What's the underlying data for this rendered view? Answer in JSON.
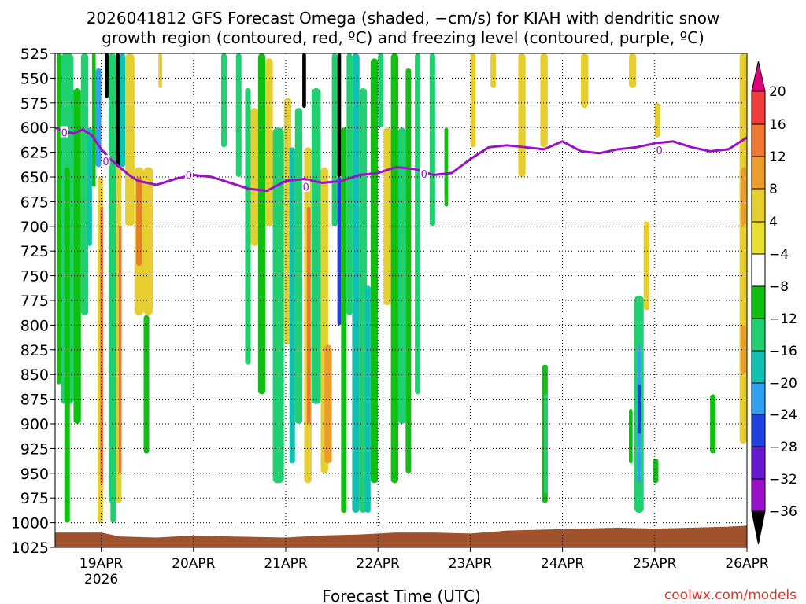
{
  "chart_data": {
    "type": "heatmap",
    "title": {
      "line1": "2026041812 GFS Forecast Omega (shaded, −cm/s) for KIAH with dendritic snow",
      "line2": "growth region (contoured, red, ºC) and freezing level (contoured, purple, ºC)"
    },
    "xlabel": "Forecast Time (UTC)",
    "ylabel": "",
    "credit": "coolwx.com/models",
    "x_tick_labels": [
      "19APR",
      "20APR",
      "21APR",
      "22APR",
      "23APR",
      "24APR",
      "25APR",
      "26APR"
    ],
    "x_first_year_label": "2026",
    "x_range_days": [
      18.5,
      26.0
    ],
    "y_range_hpa": [
      1025,
      525
    ],
    "y_ticks": [
      525,
      550,
      575,
      600,
      625,
      650,
      675,
      700,
      725,
      750,
      775,
      800,
      825,
      850,
      875,
      900,
      925,
      950,
      975,
      1000,
      1025
    ],
    "grid": true,
    "colorbar": {
      "levels": [
        20,
        16,
        12,
        8,
        4,
        -4,
        -8,
        -12,
        -16,
        -20,
        -24,
        -28,
        -32,
        -36
      ],
      "colors": [
        "#e0007a",
        "#f03c3c",
        "#f07830",
        "#ec9c2c",
        "#e6ce30",
        "#e8e030",
        "#ffffff",
        "#10c010",
        "#20d070",
        "#10c0b0",
        "#30a0f0",
        "#2040e0",
        "#6818d0",
        "#9810c8",
        "#a8a8a8",
        "#000000"
      ]
    },
    "freezing_level": {
      "label": "0",
      "color": "#9b10c8",
      "x": [
        18.5,
        18.6,
        18.7,
        18.8,
        18.9,
        19.0,
        19.1,
        19.2,
        19.3,
        19.4,
        19.6,
        19.8,
        20.0,
        20.2,
        20.4,
        20.6,
        20.8,
        21.0,
        21.2,
        21.4,
        21.6,
        21.8,
        22.0,
        22.2,
        22.4,
        22.6,
        22.8,
        23.0,
        23.2,
        23.4,
        23.6,
        23.8,
        24.0,
        24.2,
        24.4,
        24.6,
        24.8,
        25.0,
        25.2,
        25.4,
        25.6,
        25.8,
        26.0
      ],
      "p": [
        600,
        604,
        606,
        602,
        608,
        622,
        632,
        640,
        648,
        654,
        658,
        652,
        648,
        650,
        656,
        662,
        664,
        654,
        652,
        656,
        654,
        648,
        646,
        640,
        642,
        648,
        646,
        632,
        620,
        618,
        620,
        622,
        614,
        624,
        626,
        622,
        620,
        616,
        614,
        620,
        624,
        622,
        610
      ]
    },
    "dendritic_label": "0",
    "dendritic_label_positions": [
      {
        "x": 18.6,
        "p": 605
      },
      {
        "x": 19.05,
        "p": 634
      },
      {
        "x": 19.95,
        "p": 648
      },
      {
        "x": 21.22,
        "p": 660
      },
      {
        "x": 22.5,
        "p": 647
      },
      {
        "x": 25.05,
        "p": 623
      }
    ],
    "columns": [
      {
        "x0": 18.52,
        "x1": 18.56,
        "p0": 525,
        "p1": 860,
        "v": -7
      },
      {
        "x0": 18.56,
        "x1": 18.7,
        "p0": 525,
        "p1": 880,
        "v": -9
      },
      {
        "x0": 18.6,
        "x1": 18.66,
        "p0": 640,
        "p1": 1000,
        "v": -7
      },
      {
        "x0": 18.7,
        "x1": 18.78,
        "p0": 560,
        "p1": 900,
        "v": -7
      },
      {
        "x0": 18.78,
        "x1": 18.86,
        "p0": 525,
        "p1": 790,
        "v": -9
      },
      {
        "x0": 18.85,
        "x1": 18.9,
        "p0": 600,
        "p1": 720,
        "v": -14
      },
      {
        "x0": 18.9,
        "x1": 18.94,
        "p0": 525,
        "p1": 660,
        "v": -6
      },
      {
        "x0": 18.94,
        "x1": 19.0,
        "p0": 540,
        "p1": 640,
        "v": -18
      },
      {
        "x0": 18.96,
        "x1": 19.02,
        "p0": 650,
        "p1": 1000,
        "v": 6
      },
      {
        "x0": 18.99,
        "x1": 19.02,
        "p0": 680,
        "p1": 960,
        "v": 13
      },
      {
        "x0": 19.04,
        "x1": 19.08,
        "p0": 525,
        "p1": 570,
        "v": -40
      },
      {
        "x0": 19.08,
        "x1": 19.16,
        "p0": 525,
        "p1": 980,
        "v": -9
      },
      {
        "x0": 19.16,
        "x1": 19.2,
        "p0": 525,
        "p1": 640,
        "v": -40
      },
      {
        "x0": 19.16,
        "x1": 19.22,
        "p0": 640,
        "p1": 980,
        "v": 5
      },
      {
        "x0": 19.19,
        "x1": 19.22,
        "p0": 700,
        "p1": 950,
        "v": 14
      },
      {
        "x0": 19.2,
        "x1": 19.26,
        "p0": 525,
        "p1": 640,
        "v": -12
      },
      {
        "x0": 19.26,
        "x1": 19.36,
        "p0": 525,
        "p1": 700,
        "v": 5
      },
      {
        "x0": 19.36,
        "x1": 19.46,
        "p0": 640,
        "p1": 790,
        "v": 6
      },
      {
        "x0": 19.38,
        "x1": 19.44,
        "p0": 650,
        "p1": 740,
        "v": 14
      },
      {
        "x0": 19.46,
        "x1": 19.56,
        "p0": 640,
        "p1": 790,
        "v": 5
      },
      {
        "x0": 19.46,
        "x1": 19.52,
        "p0": 790,
        "p1": 930,
        "v": -7
      },
      {
        "x0": 19.1,
        "x1": 19.16,
        "p0": 700,
        "p1": 1000,
        "v": -9
      },
      {
        "x0": 19.62,
        "x1": 19.66,
        "p0": 525,
        "p1": 560,
        "v": 6
      },
      {
        "x0": 20.3,
        "x1": 20.36,
        "p0": 525,
        "p1": 620,
        "v": -8
      },
      {
        "x0": 20.46,
        "x1": 20.52,
        "p0": 525,
        "p1": 650,
        "v": -8
      },
      {
        "x0": 20.56,
        "x1": 20.62,
        "p0": 560,
        "p1": 840,
        "v": -9
      },
      {
        "x0": 20.62,
        "x1": 20.7,
        "p0": 580,
        "p1": 720,
        "v": 6
      },
      {
        "x0": 20.7,
        "x1": 20.78,
        "p0": 525,
        "p1": 870,
        "v": -7
      },
      {
        "x0": 20.78,
        "x1": 20.86,
        "p0": 530,
        "p1": 700,
        "v": 6
      },
      {
        "x0": 20.86,
        "x1": 20.98,
        "p0": 600,
        "p1": 960,
        "v": -9
      },
      {
        "x0": 20.98,
        "x1": 21.06,
        "p0": 570,
        "p1": 820,
        "v": 5
      },
      {
        "x0": 21.04,
        "x1": 21.1,
        "p0": 620,
        "p1": 940,
        "v": -12
      },
      {
        "x0": 21.1,
        "x1": 21.18,
        "p0": 580,
        "p1": 900,
        "v": -8
      },
      {
        "x0": 21.18,
        "x1": 21.22,
        "p0": 525,
        "p1": 580,
        "v": -40
      },
      {
        "x0": 21.2,
        "x1": 21.28,
        "p0": 620,
        "p1": 960,
        "v": 7
      },
      {
        "x0": 21.23,
        "x1": 21.27,
        "p0": 680,
        "p1": 900,
        "v": 14
      },
      {
        "x0": 21.28,
        "x1": 21.38,
        "p0": 560,
        "p1": 880,
        "v": -9
      },
      {
        "x0": 21.38,
        "x1": 21.46,
        "p0": 640,
        "p1": 950,
        "v": 5
      },
      {
        "x0": 21.42,
        "x1": 21.5,
        "p0": 820,
        "p1": 940,
        "v": 9
      },
      {
        "x0": 21.5,
        "x1": 21.56,
        "p0": 525,
        "p1": 700,
        "v": -8
      },
      {
        "x0": 21.56,
        "x1": 21.6,
        "p0": 525,
        "p1": 650,
        "v": -40
      },
      {
        "x0": 21.56,
        "x1": 21.6,
        "p0": 650,
        "p1": 800,
        "v": -22
      },
      {
        "x0": 21.6,
        "x1": 21.66,
        "p0": 600,
        "p1": 990,
        "v": -7
      },
      {
        "x0": 21.66,
        "x1": 21.72,
        "p0": 525,
        "p1": 790,
        "v": -8
      },
      {
        "x0": 21.72,
        "x1": 21.8,
        "p0": 525,
        "p1": 990,
        "v": -12
      },
      {
        "x0": 21.8,
        "x1": 21.88,
        "p0": 560,
        "p1": 990,
        "v": -9
      },
      {
        "x0": 21.86,
        "x1": 21.92,
        "p0": 760,
        "p1": 990,
        "v": -14
      },
      {
        "x0": 21.92,
        "x1": 22.0,
        "p0": 530,
        "p1": 960,
        "v": -7
      },
      {
        "x0": 22.0,
        "x1": 22.06,
        "p0": 525,
        "p1": 600,
        "v": -8
      },
      {
        "x0": 22.06,
        "x1": 22.14,
        "p0": 600,
        "p1": 780,
        "v": 5
      },
      {
        "x0": 22.14,
        "x1": 22.22,
        "p0": 525,
        "p1": 960,
        "v": -7
      },
      {
        "x0": 22.22,
        "x1": 22.3,
        "p0": 600,
        "p1": 900,
        "v": -8
      },
      {
        "x0": 22.3,
        "x1": 22.36,
        "p0": 540,
        "p1": 950,
        "v": -7
      },
      {
        "x0": 22.4,
        "x1": 22.46,
        "p0": 525,
        "p1": 870,
        "v": -8
      },
      {
        "x0": 22.56,
        "x1": 22.62,
        "p0": 525,
        "p1": 700,
        "v": -9
      },
      {
        "x0": 22.72,
        "x1": 22.76,
        "p0": 600,
        "p1": 680,
        "v": -6
      },
      {
        "x0": 23.0,
        "x1": 23.06,
        "p0": 525,
        "p1": 620,
        "v": 5
      },
      {
        "x0": 23.22,
        "x1": 23.28,
        "p0": 525,
        "p1": 560,
        "v": 6
      },
      {
        "x0": 23.52,
        "x1": 23.6,
        "p0": 525,
        "p1": 650,
        "v": 6
      },
      {
        "x0": 23.76,
        "x1": 23.84,
        "p0": 525,
        "p1": 620,
        "v": 6
      },
      {
        "x0": 23.78,
        "x1": 23.84,
        "p0": 840,
        "p1": 980,
        "v": -7
      },
      {
        "x0": 23.8,
        "x1": 23.84,
        "p0": 870,
        "p1": 970,
        "v": -10
      },
      {
        "x0": 24.2,
        "x1": 24.28,
        "p0": 525,
        "p1": 580,
        "v": 6
      },
      {
        "x0": 24.72,
        "x1": 24.8,
        "p0": 525,
        "p1": 560,
        "v": 6
      },
      {
        "x0": 24.72,
        "x1": 24.76,
        "p0": 885,
        "p1": 940,
        "v": -7
      },
      {
        "x0": 24.78,
        "x1": 24.88,
        "p0": 770,
        "p1": 990,
        "v": -10
      },
      {
        "x0": 24.81,
        "x1": 24.85,
        "p0": 820,
        "p1": 960,
        "v": -16
      },
      {
        "x0": 24.82,
        "x1": 24.85,
        "p0": 860,
        "p1": 910,
        "v": -22
      },
      {
        "x0": 24.88,
        "x1": 24.94,
        "p0": 695,
        "p1": 785,
        "v": 6
      },
      {
        "x0": 25.0,
        "x1": 25.06,
        "p0": 575,
        "p1": 610,
        "v": 6
      },
      {
        "x0": 24.98,
        "x1": 25.04,
        "p0": 935,
        "p1": 960,
        "v": -7
      },
      {
        "x0": 25.6,
        "x1": 25.66,
        "p0": 870,
        "p1": 930,
        "v": -7
      },
      {
        "x0": 25.92,
        "x1": 26.0,
        "p0": 525,
        "p1": 920,
        "v": 6
      },
      {
        "x0": 25.94,
        "x1": 25.99,
        "p0": 640,
        "p1": 700,
        "v": 10
      },
      {
        "x0": 25.94,
        "x1": 25.99,
        "p0": 800,
        "p1": 850,
        "v": 10
      }
    ],
    "terrain_color": "#a0522d",
    "terrain_surface_hpa": [
      {
        "x": 18.5,
        "p": 1010
      },
      {
        "x": 19.0,
        "p": 1010
      },
      {
        "x": 19.2,
        "p": 1014
      },
      {
        "x": 19.6,
        "p": 1015
      },
      {
        "x": 20.0,
        "p": 1013
      },
      {
        "x": 20.4,
        "p": 1014
      },
      {
        "x": 21.0,
        "p": 1015
      },
      {
        "x": 21.4,
        "p": 1013
      },
      {
        "x": 21.8,
        "p": 1012
      },
      {
        "x": 22.2,
        "p": 1010
      },
      {
        "x": 22.6,
        "p": 1010
      },
      {
        "x": 23.0,
        "p": 1011
      },
      {
        "x": 23.4,
        "p": 1008
      },
      {
        "x": 23.8,
        "p": 1007
      },
      {
        "x": 24.2,
        "p": 1006
      },
      {
        "x": 24.6,
        "p": 1005
      },
      {
        "x": 25.0,
        "p": 1006
      },
      {
        "x": 25.4,
        "p": 1005
      },
      {
        "x": 25.8,
        "p": 1004
      },
      {
        "x": 26.0,
        "p": 1003
      }
    ]
  }
}
